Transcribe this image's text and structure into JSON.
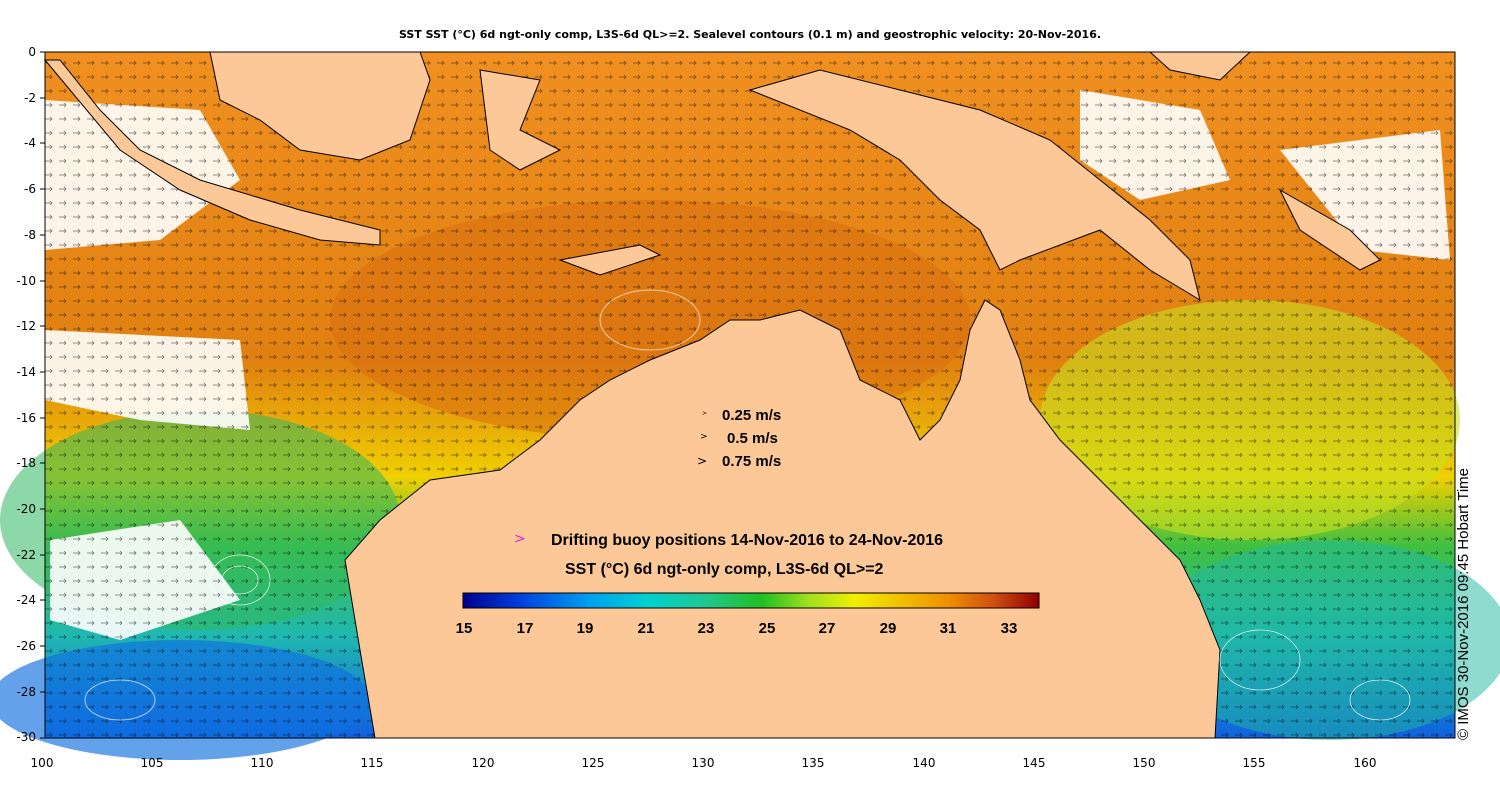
{
  "title": "SST SST (°C) 6d ngt-only comp, L3S-6d QL>=2. Sealevel contours (0.1 m) and geostrophic velocity: 20-Nov-2016.",
  "y_ticks": [
    "0",
    "-2",
    "-4",
    "-6",
    "-8",
    "-10",
    "-12",
    "-14",
    "-16",
    "-18",
    "-20",
    "-22",
    "-24",
    "-26",
    "-28",
    "-30"
  ],
  "x_ticks": [
    "100",
    "105",
    "110",
    "115",
    "120",
    "125",
    "130",
    "135",
    "140",
    "145",
    "150",
    "155",
    "160"
  ],
  "velocity_scale": [
    {
      "arrow": ">",
      "label": "0.25 m/s"
    },
    {
      "arrow": ">",
      "label": "0.5 m/s"
    },
    {
      "arrow": ">",
      "label": "0.75 m/s"
    }
  ],
  "buoy": {
    "marker": ">",
    "label": "Drifting buoy positions 14-Nov-2016 to 24-Nov-2016",
    "marker_color": "#e020e0"
  },
  "colorbar": {
    "title": "SST (°C) 6d ngt-only comp, L3S-6d QL>=2",
    "ticks": [
      "15",
      "17",
      "19",
      "21",
      "23",
      "25",
      "27",
      "29",
      "31",
      "33"
    ],
    "range": [
      15,
      34
    ],
    "colors": [
      "#00008b",
      "#0000c8",
      "#0050f0",
      "#00a0f0",
      "#00d0e0",
      "#20c8a0",
      "#20c040",
      "#40d020",
      "#a0e020",
      "#f0f000",
      "#f0c000",
      "#f09000",
      "#e07010",
      "#c04010",
      "#900000"
    ]
  },
  "side_credit": "© IMOS 30-Nov-2016 09:45 Hobart Time",
  "colors": {
    "land": "#fcc898",
    "no_data": "#ffffff",
    "arrows": "#000000",
    "contours": "#ffffff"
  },
  "chart_data": {
    "type": "heatmap",
    "xlabel": "",
    "ylabel": "",
    "xlim": [
      100,
      164
    ],
    "ylim": [
      -30,
      0
    ],
    "variable": "SST (°C)",
    "value_range": [
      15,
      34
    ]
  }
}
